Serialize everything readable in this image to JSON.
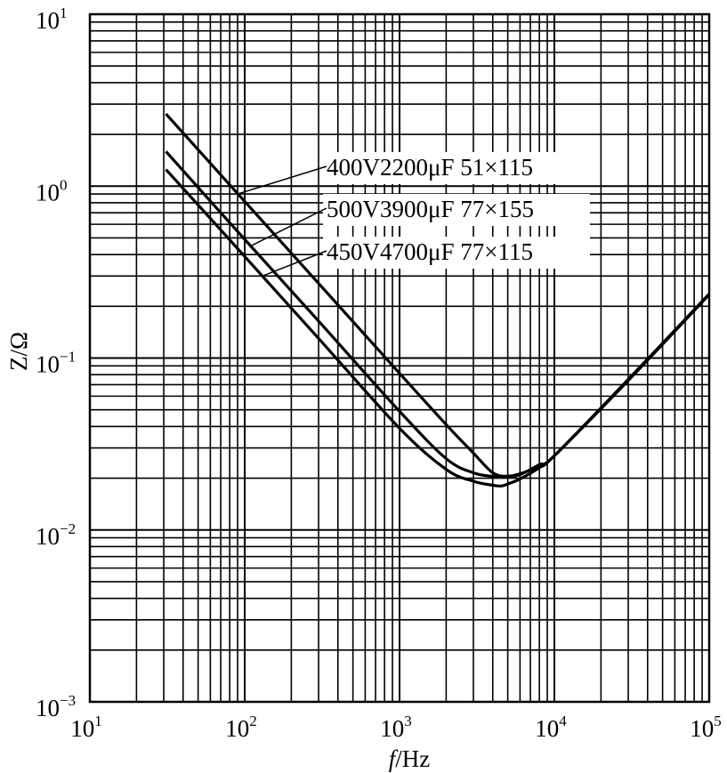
{
  "chart_data": {
    "type": "line",
    "xscale": "log",
    "yscale": "log",
    "xlim": [
      10,
      100000
    ],
    "ylim": [
      0.001,
      10
    ],
    "grid": true,
    "xlabel_italic": "f",
    "xlabel_rest": "/Hz",
    "ylabel": "Z/Ω",
    "x_ticks": [
      {
        "base": "10",
        "exp": "1"
      },
      {
        "base": "10",
        "exp": "2"
      },
      {
        "base": "10",
        "exp": "3"
      },
      {
        "base": "10",
        "exp": "4"
      },
      {
        "base": "10",
        "exp": "5"
      }
    ],
    "y_ticks": [
      {
        "base": "10",
        "exp": "1"
      },
      {
        "base": "10",
        "exp": "0"
      },
      {
        "base": "10",
        "exp": "−1"
      },
      {
        "base": "10",
        "exp": "−2"
      },
      {
        "base": "10",
        "exp": "−3"
      }
    ],
    "legend_placement": "inline labels with leader lines",
    "series": [
      {
        "name": "400V2200μF 51×115",
        "x": [
          31,
          100,
          300,
          1000,
          2000,
          3000,
          4000,
          5000,
          6000,
          8000,
          10000,
          30000,
          100000
        ],
        "y": [
          2.63,
          0.815,
          0.272,
          0.0815,
          0.041,
          0.028,
          0.0215,
          0.0205,
          0.021,
          0.024,
          0.027,
          0.075,
          0.236
        ]
      },
      {
        "name": "500V3900μF 77×155",
        "x": [
          31,
          100,
          300,
          1000,
          2000,
          3000,
          4000,
          5000,
          6000,
          8000,
          10000,
          30000,
          100000
        ],
        "y": [
          1.59,
          0.49,
          0.164,
          0.049,
          0.026,
          0.0215,
          0.0205,
          0.0205,
          0.0212,
          0.0235,
          0.027,
          0.075,
          0.236
        ]
      },
      {
        "name": "450V4700μF 77×115",
        "x": [
          31,
          100,
          300,
          1000,
          2000,
          3000,
          4000,
          4500,
          5000,
          6000,
          8000,
          10000,
          30000,
          100000
        ],
        "y": [
          1.25,
          0.39,
          0.13,
          0.039,
          0.0225,
          0.0192,
          0.0182,
          0.018,
          0.0185,
          0.0198,
          0.023,
          0.027,
          0.074,
          0.234
        ]
      }
    ]
  }
}
